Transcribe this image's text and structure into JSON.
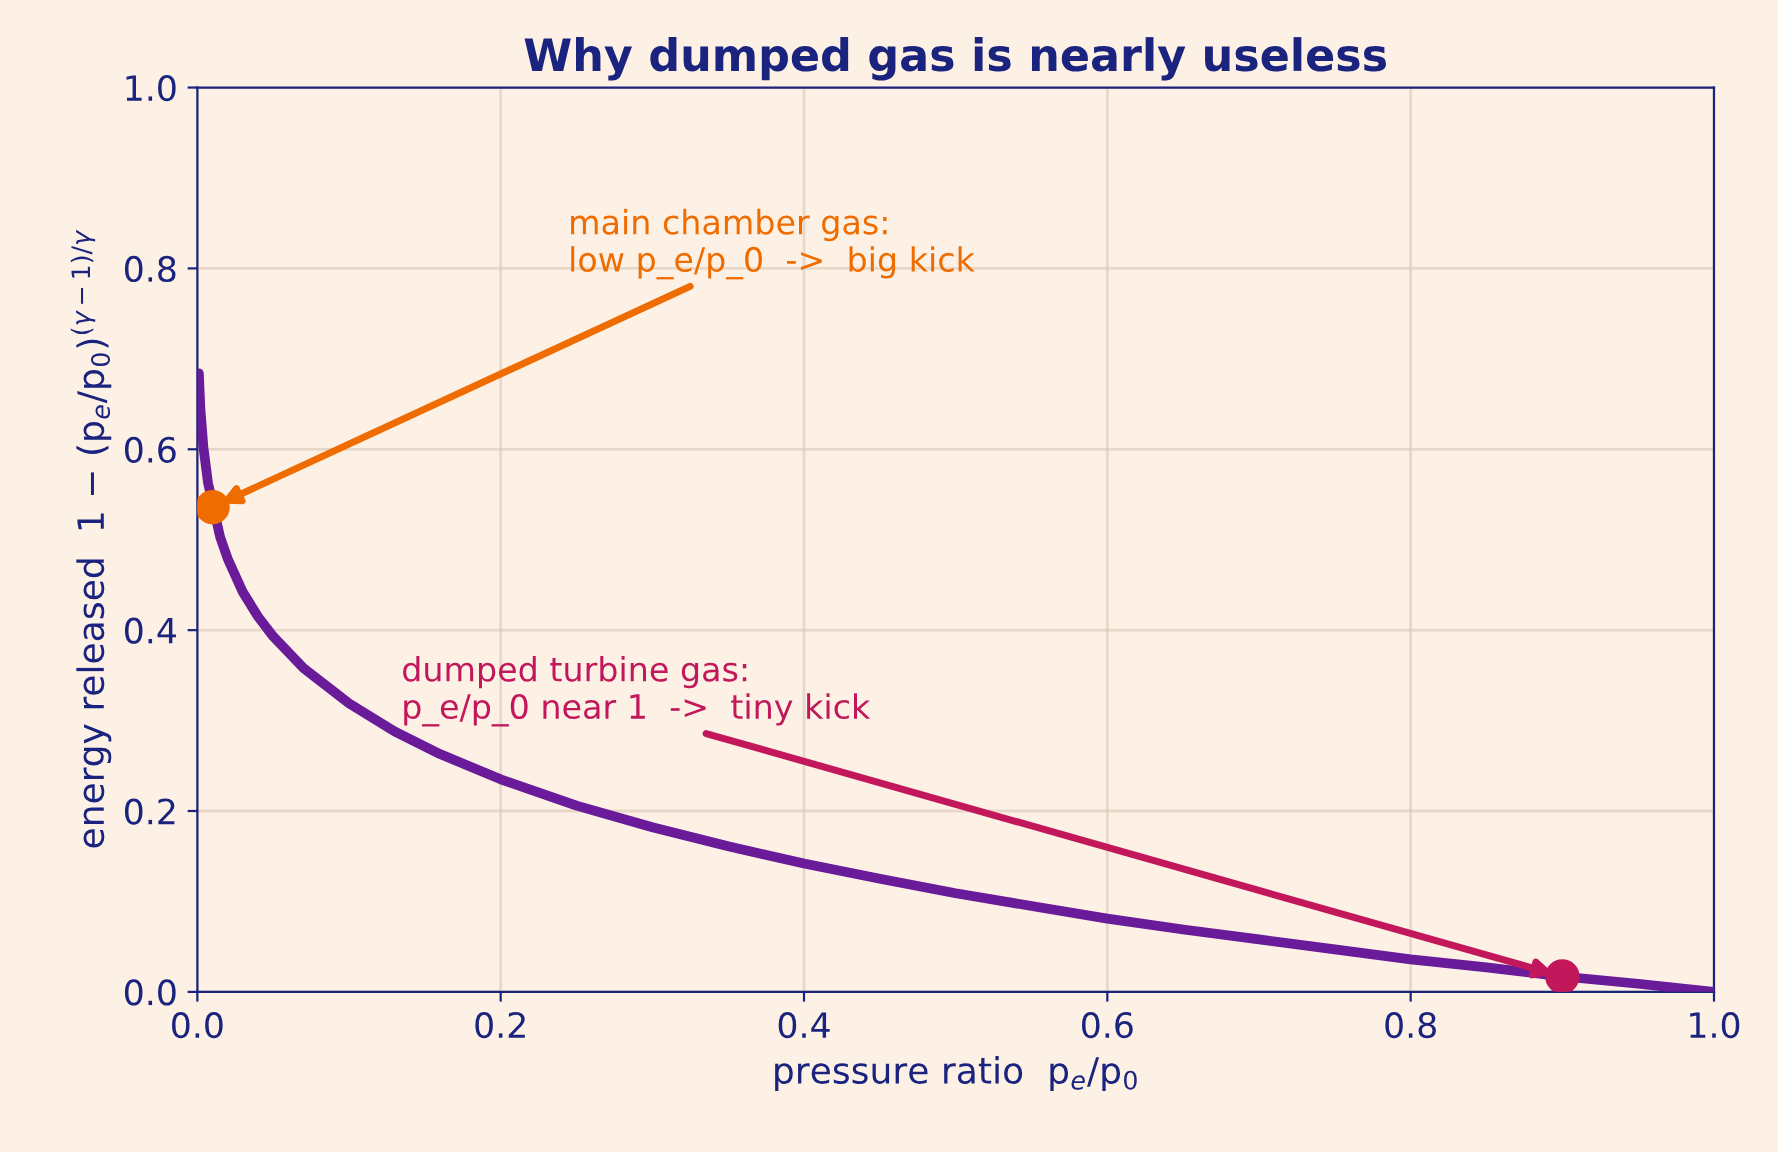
{
  "chart_data": {
    "type": "line",
    "title": "Why dumped gas is nearly useless",
    "xlabel": "pressure ratio  p$_{e}$/p$_{0}$",
    "ylabel": "energy released  1 − (p$_{e}$/p$_{0}$)$^{(γ−1)/γ}$",
    "series": [
      {
        "marker": "none",
        "color": "#6a1b9a",
        "x": [
          0.001,
          0.002,
          0.004,
          0.007,
          0.015,
          0.02,
          0.03,
          0.04,
          0.05,
          0.07,
          0.1,
          0.13,
          0.16,
          0.2,
          0.25,
          0.3,
          0.35,
          0.4,
          0.45,
          0.5,
          0.55,
          0.6,
          0.65,
          0.7,
          0.75,
          0.8,
          0.85,
          0.9,
          0.95,
          1.0
        ],
        "values": [
          0.684,
          0.645,
          0.602,
          0.563,
          0.503,
          0.479,
          0.442,
          0.415,
          0.393,
          0.358,
          0.319,
          0.288,
          0.263,
          0.235,
          0.206,
          0.182,
          0.161,
          0.142,
          0.125,
          0.109,
          0.095,
          0.081,
          0.069,
          0.058,
          0.047,
          0.036,
          0.027,
          0.017,
          0.009,
          0.0
        ]
      },
      {
        "type": "scatter",
        "marker": "circle",
        "color": "#ef6c00",
        "x": [
          0.01
        ],
        "values": [
          0.536
        ]
      },
      {
        "type": "scatter",
        "marker": "circle",
        "color": "#c2185b",
        "x": [
          0.9
        ],
        "values": [
          0.017
        ]
      }
    ],
    "annotations": [
      {
        "text": "main chamber gas:\nlow p_e/p_0  ->  big kick",
        "x": 0.01,
        "y": 0.536
      },
      {
        "text": "dumped turbine gas:\np_e/p_0 near 1  ->  tiny kick",
        "x": 0.9,
        "y": 0.017
      }
    ],
    "xlim": [
      0.0,
      1.0
    ],
    "ylim": [
      0.0,
      1.0
    ],
    "xticks": [
      {
        "value": 0.0,
        "label": "0.0"
      },
      0.2,
      0.4,
      0.6,
      0.8,
      {
        "value": 1.0,
        "label": "1.0"
      }
    ],
    "yticks": [
      {
        "value": 0.0,
        "label": "0.0"
      },
      0.2,
      0.4,
      0.6,
      0.8,
      {
        "value": 1.0,
        "label": "1.0"
      }
    ],
    "grid": true,
    "line_style": "solid"
  }
}
